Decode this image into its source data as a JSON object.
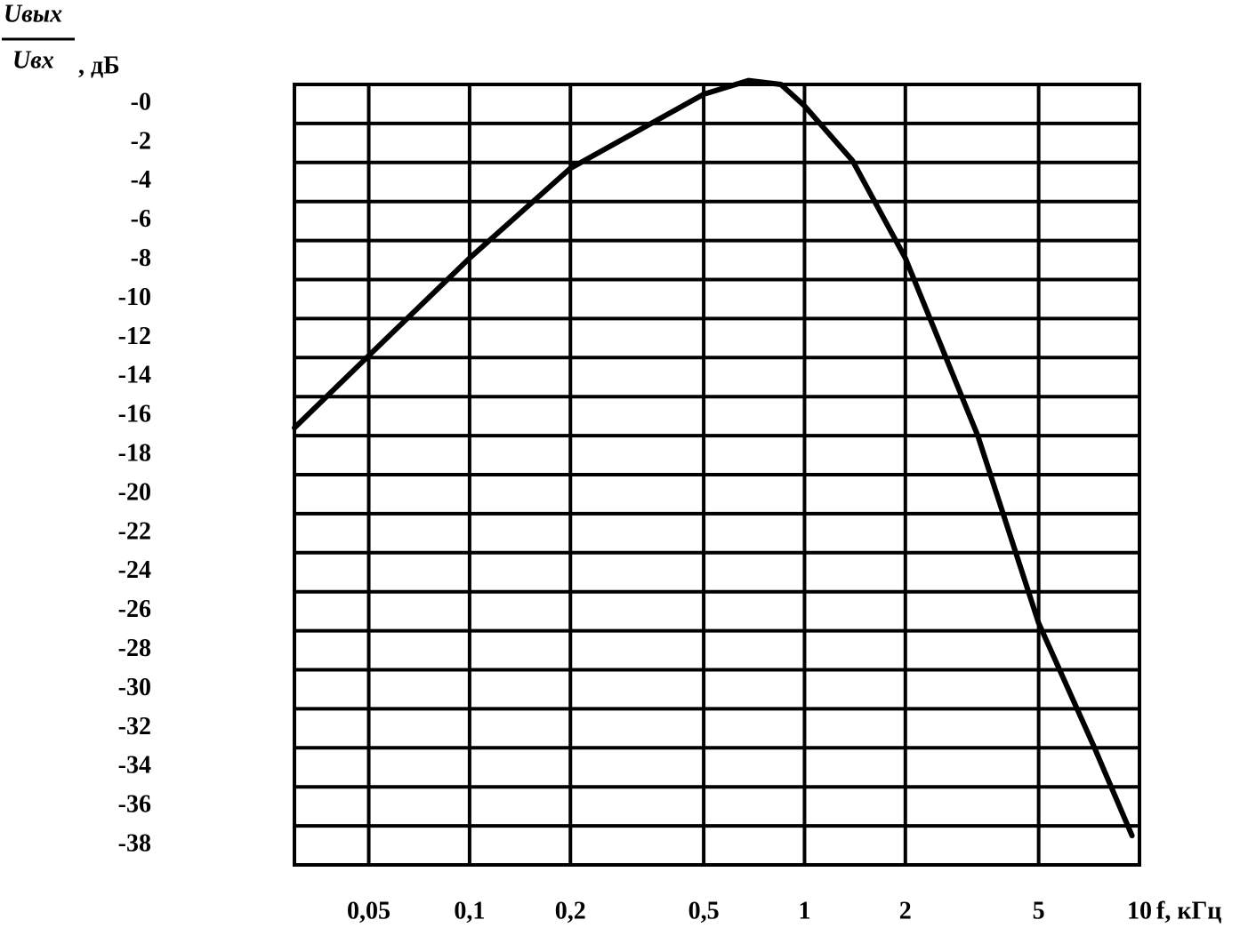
{
  "chart_data": {
    "type": "line",
    "y_label_numerator": "Uвых",
    "y_label_denominator": "Uвх",
    "y_label_unit": ", дБ",
    "x_label": "f, кГц",
    "x_log": true,
    "xlim": [
      0.03,
      10
    ],
    "ylim": [
      -39,
      1
    ],
    "xticks": [
      {
        "value": 0.05,
        "label": "0,05"
      },
      {
        "value": 0.1,
        "label": "0,1"
      },
      {
        "value": 0.2,
        "label": "0,2"
      },
      {
        "value": 0.5,
        "label": "0,5"
      },
      1,
      2,
      5,
      10
    ],
    "yticks": [
      {
        "value": 0,
        "label": "-0"
      },
      -2,
      -4,
      -6,
      -8,
      -10,
      -12,
      -14,
      -16,
      -18,
      -20,
      -22,
      -24,
      -26,
      -28,
      -30,
      -32,
      -34,
      -36,
      -38
    ],
    "ygrid": [
      -1,
      -3,
      -5,
      -7,
      -9,
      -11,
      -13,
      -15,
      -17,
      -19,
      -21,
      -23,
      -25,
      -27,
      -29,
      -31,
      -33,
      -35,
      -37
    ],
    "color": "#000000",
    "x": [
      0.03,
      0.05,
      0.1,
      0.2,
      0.5,
      0.68,
      0.85,
      1,
      1.39,
      2,
      3.29,
      5,
      7.3,
      9.5
    ],
    "values": [
      -16.6,
      -12.9,
      -7.9,
      -3.3,
      0.5,
      1.2,
      1.0,
      -0.1,
      -2.9,
      -7.9,
      -17,
      -26.6,
      -32.9,
      -37.5
    ]
  }
}
